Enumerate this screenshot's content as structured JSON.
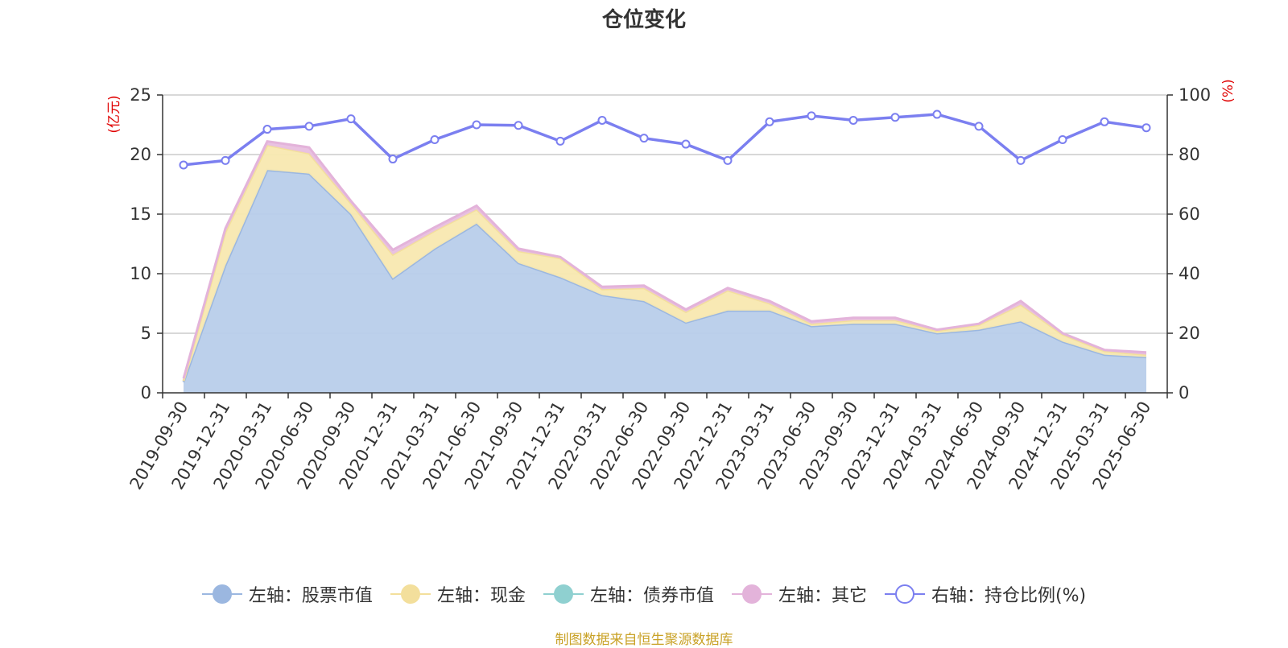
{
  "title": "仓位变化",
  "source": "制图数据来自恒生聚源数据库",
  "chart_data": {
    "type": "area",
    "x": [
      "2019-09-30",
      "2019-12-31",
      "2020-03-31",
      "2020-06-30",
      "2020-09-30",
      "2020-12-31",
      "2021-03-31",
      "2021-06-30",
      "2021-09-30",
      "2021-12-31",
      "2022-03-31",
      "2022-06-30",
      "2022-09-30",
      "2022-12-31",
      "2023-03-31",
      "2023-06-30",
      "2023-09-30",
      "2023-12-31",
      "2024-03-31",
      "2024-06-30",
      "2024-09-30",
      "2024-12-31",
      "2025-03-31",
      "2025-06-30"
    ],
    "left_axis": {
      "unit": "(亿元)",
      "ylim": [
        0,
        25
      ],
      "ticks": [
        "0",
        "5",
        "10",
        "15",
        "20",
        "25"
      ]
    },
    "right_axis": {
      "unit": "(%)",
      "ylim": [
        0,
        100
      ],
      "ticks": [
        "0",
        "20",
        "40",
        "60",
        "80",
        "100"
      ]
    },
    "grid": true,
    "legend_position": "bottom",
    "series": [
      {
        "name": "左轴：股票市值",
        "axis": "left",
        "kind": "area",
        "color": "#9bb7e0",
        "fill": "#b8cdea",
        "values": [
          0.9,
          10.7,
          18.7,
          18.4,
          15.0,
          9.6,
          12.1,
          14.2,
          10.9,
          9.7,
          8.2,
          7.7,
          5.9,
          6.9,
          6.9,
          5.6,
          5.8,
          5.8,
          5.0,
          5.3,
          6.0,
          4.3,
          3.2,
          3.0
        ]
      },
      {
        "name": "左轴：现金",
        "axis": "left",
        "kind": "area",
        "color": "#f3df9c",
        "fill": "#f8e8b0",
        "values": [
          0.1,
          2.8,
          2.1,
          1.7,
          0.9,
          2.0,
          1.5,
          1.2,
          1.0,
          1.6,
          0.5,
          1.1,
          0.9,
          1.7,
          0.6,
          0.2,
          0.3,
          0.3,
          0.2,
          0.4,
          1.4,
          0.6,
          0.3,
          0.2
        ]
      },
      {
        "name": "左轴：债券市值",
        "axis": "left",
        "kind": "area",
        "color": "#8fd0d0",
        "fill": "#9fd6d6",
        "values": [
          0,
          0,
          0,
          0,
          0,
          0,
          0,
          0,
          0,
          0,
          0,
          0,
          0,
          0,
          0,
          0,
          0,
          0,
          0,
          0,
          0,
          0,
          0,
          0
        ]
      },
      {
        "name": "左轴：其它",
        "axis": "left",
        "kind": "area",
        "color": "#e3b3da",
        "fill": "#e8bfe0",
        "values": [
          0.2,
          0.3,
          0.3,
          0.5,
          0.2,
          0.4,
          0.3,
          0.3,
          0.2,
          0.1,
          0.2,
          0.2,
          0.2,
          0.2,
          0.2,
          0.2,
          0.2,
          0.2,
          0.1,
          0.1,
          0.3,
          0.1,
          0.1,
          0.2
        ]
      },
      {
        "name": "右轴：持仓比例(%)",
        "axis": "right",
        "kind": "line",
        "color": "#7b7ff0",
        "values": [
          76.5,
          78.0,
          88.5,
          89.5,
          92.0,
          78.5,
          85.0,
          90.0,
          89.8,
          84.5,
          91.5,
          85.5,
          83.5,
          78.0,
          91.0,
          93.0,
          91.5,
          92.5,
          93.5,
          89.5,
          78.0,
          85.0,
          91.0,
          89.0
        ]
      }
    ]
  }
}
